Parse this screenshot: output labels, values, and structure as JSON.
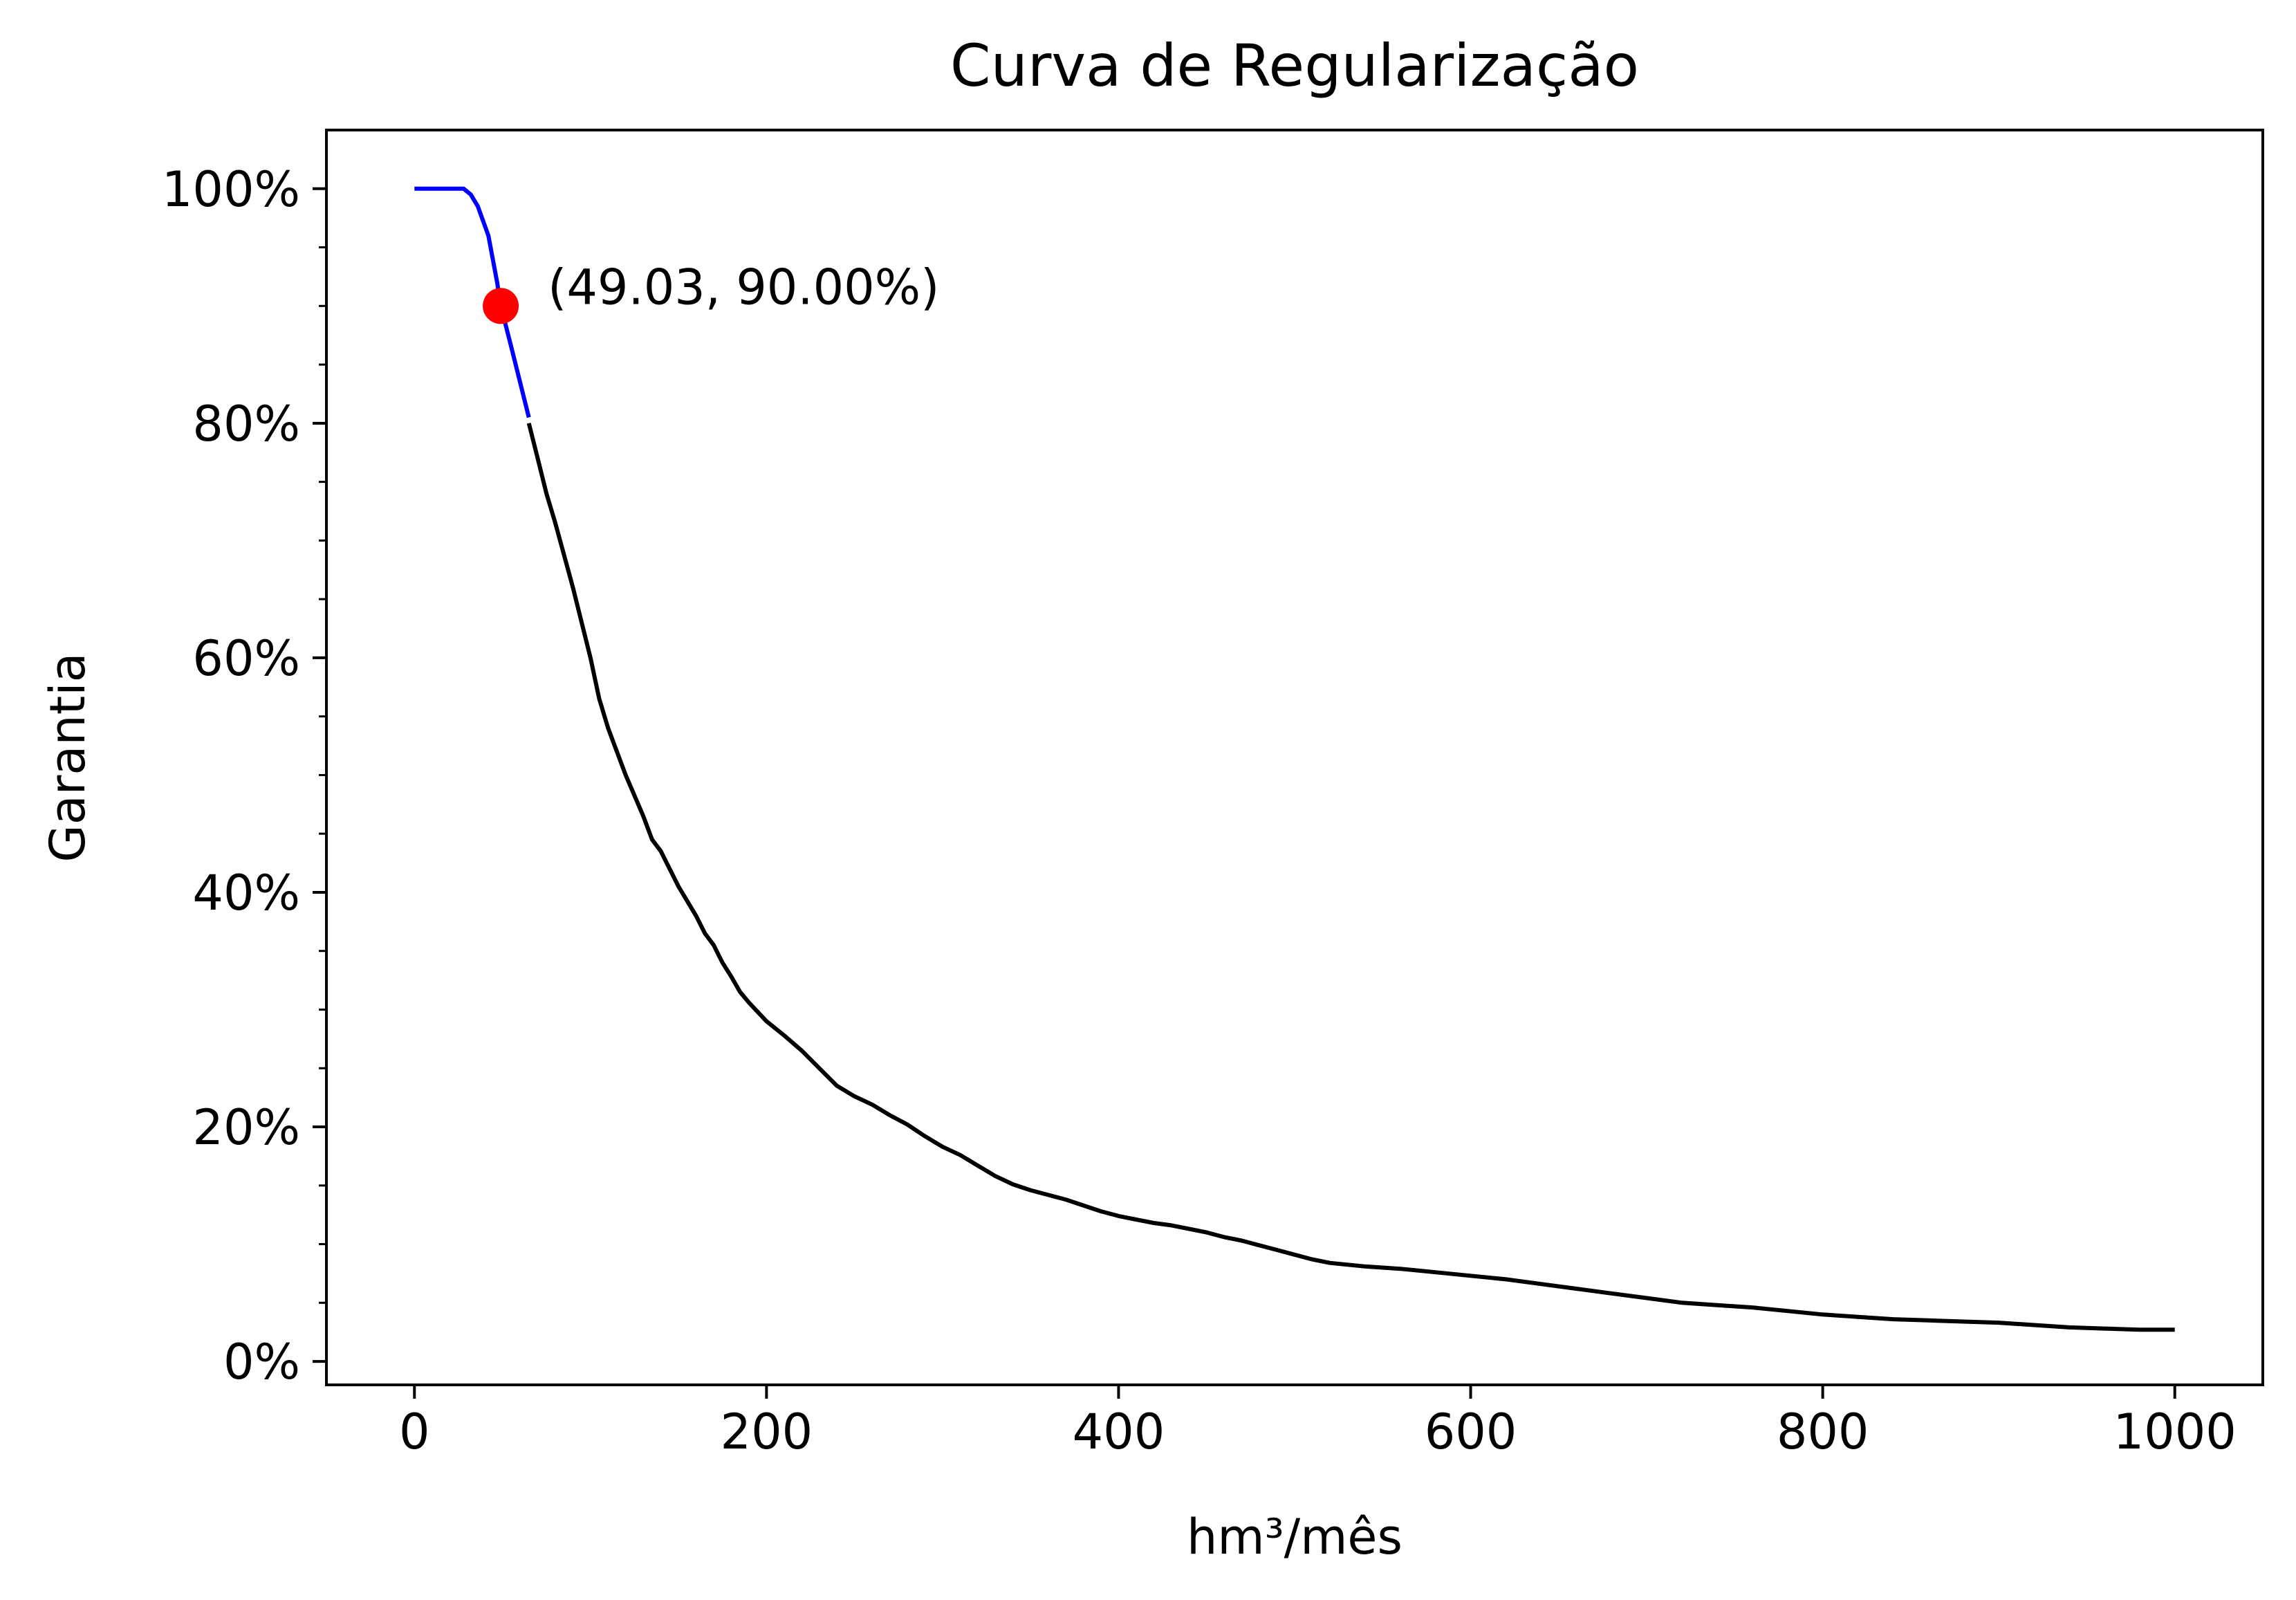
{
  "chart_data": {
    "type": "line",
    "title": "Curva de Regularização",
    "xlabel": "hm³/mês",
    "ylabel": "Garantia",
    "xlim": [
      -50,
      1050
    ],
    "ylim": [
      -2,
      105
    ],
    "x_ticks": [
      0,
      200,
      400,
      600,
      800,
      1000
    ],
    "x_tick_labels": [
      "0",
      "200",
      "400",
      "600",
      "800",
      "1000"
    ],
    "y_ticks": [
      0,
      20,
      40,
      60,
      80,
      100
    ],
    "y_tick_labels": [
      "0%",
      "20%",
      "40%",
      "60%",
      "80%",
      "100%"
    ],
    "y_minor_ticks": [
      5,
      10,
      15,
      25,
      30,
      35,
      45,
      50,
      55,
      65,
      70,
      75,
      85,
      90,
      95
    ],
    "grid": false,
    "series": [
      {
        "color": "#0000ff",
        "x": [
          0,
          28,
          32,
          36,
          42,
          47,
          49.03,
          55,
          60,
          65
        ],
        "y": [
          100,
          100,
          99.5,
          98.5,
          96,
          92,
          90,
          86.5,
          83.5,
          80.5
        ]
      },
      {
        "color": "#000000",
        "x": [
          65,
          70,
          75,
          80,
          90,
          100,
          105,
          110,
          120,
          130,
          135,
          140,
          145,
          150,
          160,
          165,
          170,
          175,
          180,
          185,
          190,
          200,
          210,
          220,
          230,
          240,
          250,
          260,
          270,
          280,
          290,
          300,
          310,
          320,
          330,
          340,
          350,
          360,
          370,
          380,
          390,
          400,
          410,
          420,
          430,
          440,
          450,
          460,
          470,
          480,
          490,
          500,
          510,
          520,
          540,
          560,
          580,
          600,
          620,
          640,
          660,
          680,
          700,
          720,
          740,
          760,
          780,
          800,
          820,
          840,
          860,
          880,
          900,
          920,
          940,
          960,
          980,
          1000
        ],
        "y": [
          80,
          77,
          74,
          71.5,
          66,
          60,
          56.5,
          54,
          50,
          46.5,
          44.5,
          43.5,
          42,
          40.5,
          38,
          36.5,
          35.5,
          34,
          32.8,
          31.5,
          30.6,
          29,
          27.8,
          26.5,
          25,
          23.5,
          22.6,
          21.9,
          21,
          20.2,
          19.2,
          18.3,
          17.6,
          16.7,
          15.8,
          15.1,
          14.6,
          14.2,
          13.8,
          13.3,
          12.8,
          12.4,
          12.1,
          11.8,
          11.6,
          11.3,
          11,
          10.6,
          10.3,
          9.9,
          9.5,
          9.1,
          8.7,
          8.4,
          8.1,
          7.9,
          7.6,
          7.3,
          7,
          6.6,
          6.2,
          5.8,
          5.4,
          5,
          4.8,
          4.6,
          4.3,
          4,
          3.8,
          3.6,
          3.5,
          3.4,
          3.3,
          3.1,
          2.9,
          2.8,
          2.7,
          2.7
        ]
      }
    ],
    "marker": {
      "x": 49.03,
      "y": 90.0,
      "color": "#ff0000"
    },
    "annotation": "(49.03, 90.00%)"
  }
}
